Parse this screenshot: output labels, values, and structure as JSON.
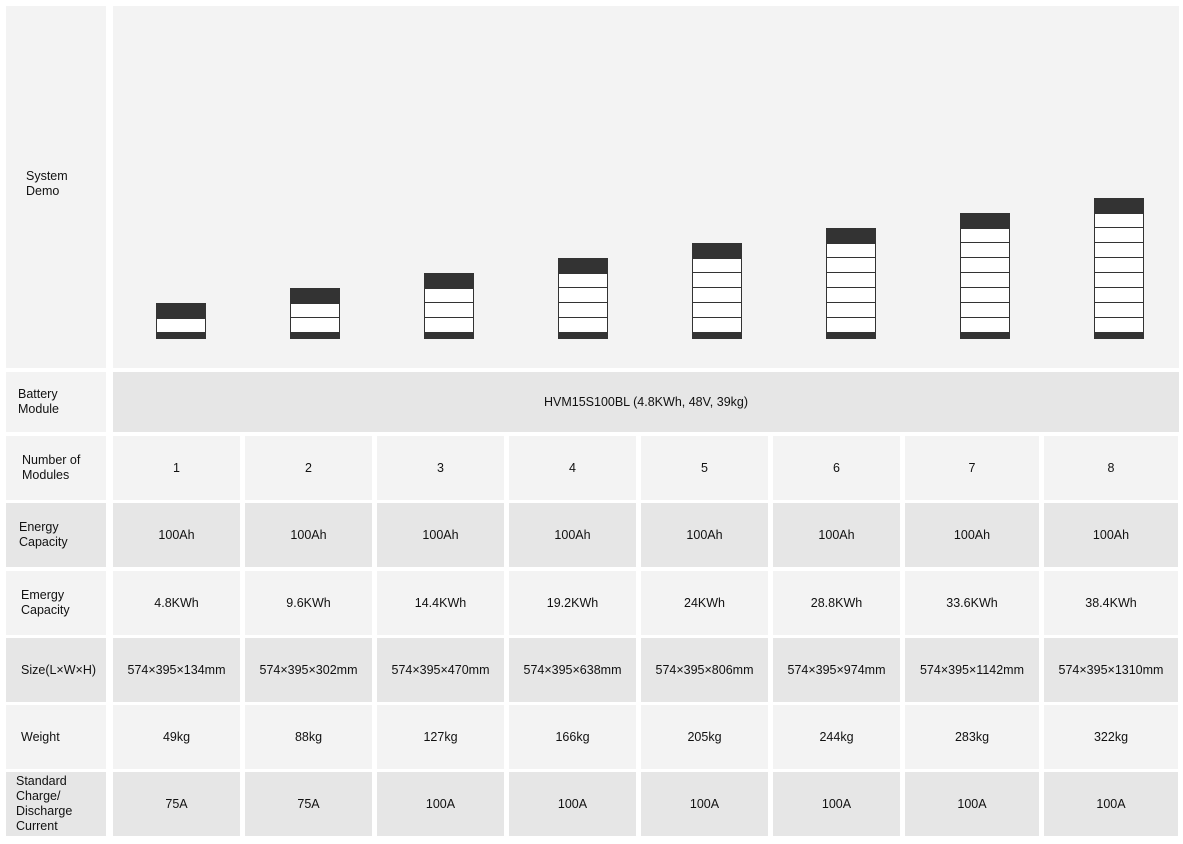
{
  "system_demo": {
    "label": "System Demo"
  },
  "battery_module": {
    "label": "Battery Module",
    "value": "HVM15S100BL (4.8KWh, 48V, 39kg)"
  },
  "rows": [
    {
      "label": "Number of Modules",
      "values": [
        "1",
        "2",
        "3",
        "4",
        "5",
        "6",
        "7",
        "8"
      ]
    },
    {
      "label": "Energy Capacity",
      "values": [
        "100Ah",
        "100Ah",
        "100Ah",
        "100Ah",
        "100Ah",
        "100Ah",
        "100Ah",
        "100Ah"
      ]
    },
    {
      "label": "Emergy Capacity",
      "values": [
        "4.8KWh",
        "9.6KWh",
        "14.4KWh",
        "19.2KWh",
        "24KWh",
        "28.8KWh",
        "33.6KWh",
        "38.4KWh"
      ]
    },
    {
      "label": "Size(L×W×H)",
      "values": [
        "574×395×134mm",
        "574×395×302mm",
        "574×395×470mm",
        "574×395×638mm",
        "574×395×806mm",
        "574×395×974mm",
        "574×395×1142mm",
        "574×395×1310mm"
      ]
    },
    {
      "label": "Weight",
      "values": [
        "49kg",
        "88kg",
        "127kg",
        "166kg",
        "205kg",
        "244kg",
        "283kg",
        "322kg"
      ]
    },
    {
      "label": "Standard Charge/ Discharge Current",
      "values": [
        "75A",
        "75A",
        "100A",
        "100A",
        "100A",
        "100A",
        "100A",
        "100A"
      ]
    }
  ],
  "stacks": [
    1,
    2,
    3,
    4,
    5,
    6,
    7,
    8
  ]
}
